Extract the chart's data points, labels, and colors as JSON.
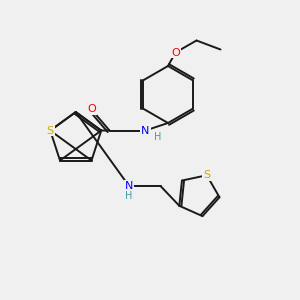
{
  "background_color": "#f0f0f0",
  "bond_color": "#1a1a1a",
  "atom_colors": {
    "O": "#ff0000",
    "N": "#0000ff",
    "S": "#ccaa00",
    "H": "#4a9999",
    "C": "#1a1a1a"
  },
  "figsize": [
    3.0,
    3.0
  ],
  "dpi": 100
}
